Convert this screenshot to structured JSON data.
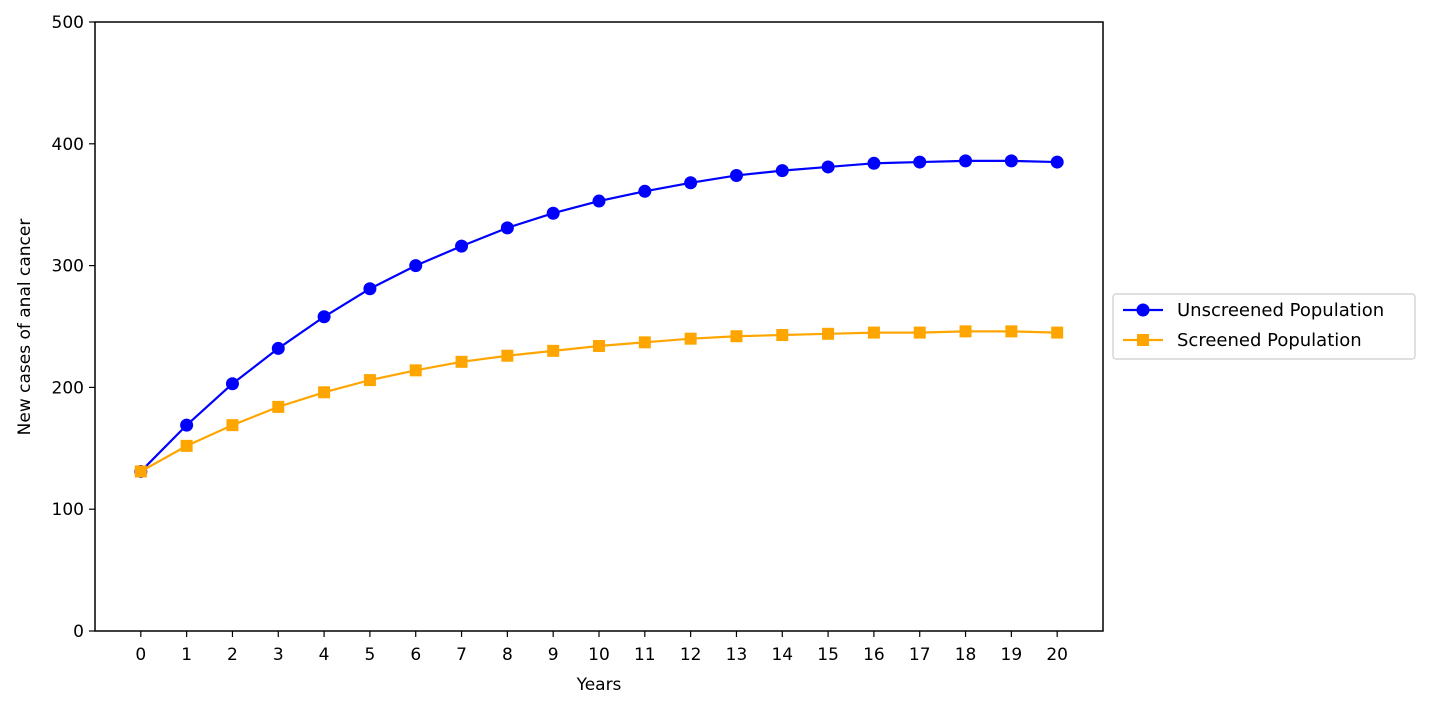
{
  "chart_data": {
    "type": "line",
    "title": "",
    "xlabel": "Years",
    "ylabel": "New cases of anal cancer",
    "x": [
      0,
      1,
      2,
      3,
      4,
      5,
      6,
      7,
      8,
      9,
      10,
      11,
      12,
      13,
      14,
      15,
      16,
      17,
      18,
      19,
      20
    ],
    "xlim": [
      -1,
      21
    ],
    "ylim": [
      0,
      500
    ],
    "yticks": [
      0,
      100,
      200,
      300,
      400,
      500
    ],
    "grid": false,
    "legend_position": "right, outside plot",
    "series": [
      {
        "name": "Unscreened Population",
        "color": "#0000ff",
        "marker": "circle",
        "values": [
          131,
          169,
          203,
          232,
          258,
          281,
          300,
          316,
          331,
          343,
          353,
          361,
          368,
          374,
          378,
          381,
          384,
          385,
          386,
          386,
          385
        ]
      },
      {
        "name": "Screened Population",
        "color": "#ffa500",
        "marker": "square",
        "values": [
          131,
          152,
          169,
          184,
          196,
          206,
          214,
          221,
          226,
          230,
          234,
          237,
          240,
          242,
          243,
          244,
          245,
          245,
          246,
          246,
          245
        ]
      }
    ]
  }
}
